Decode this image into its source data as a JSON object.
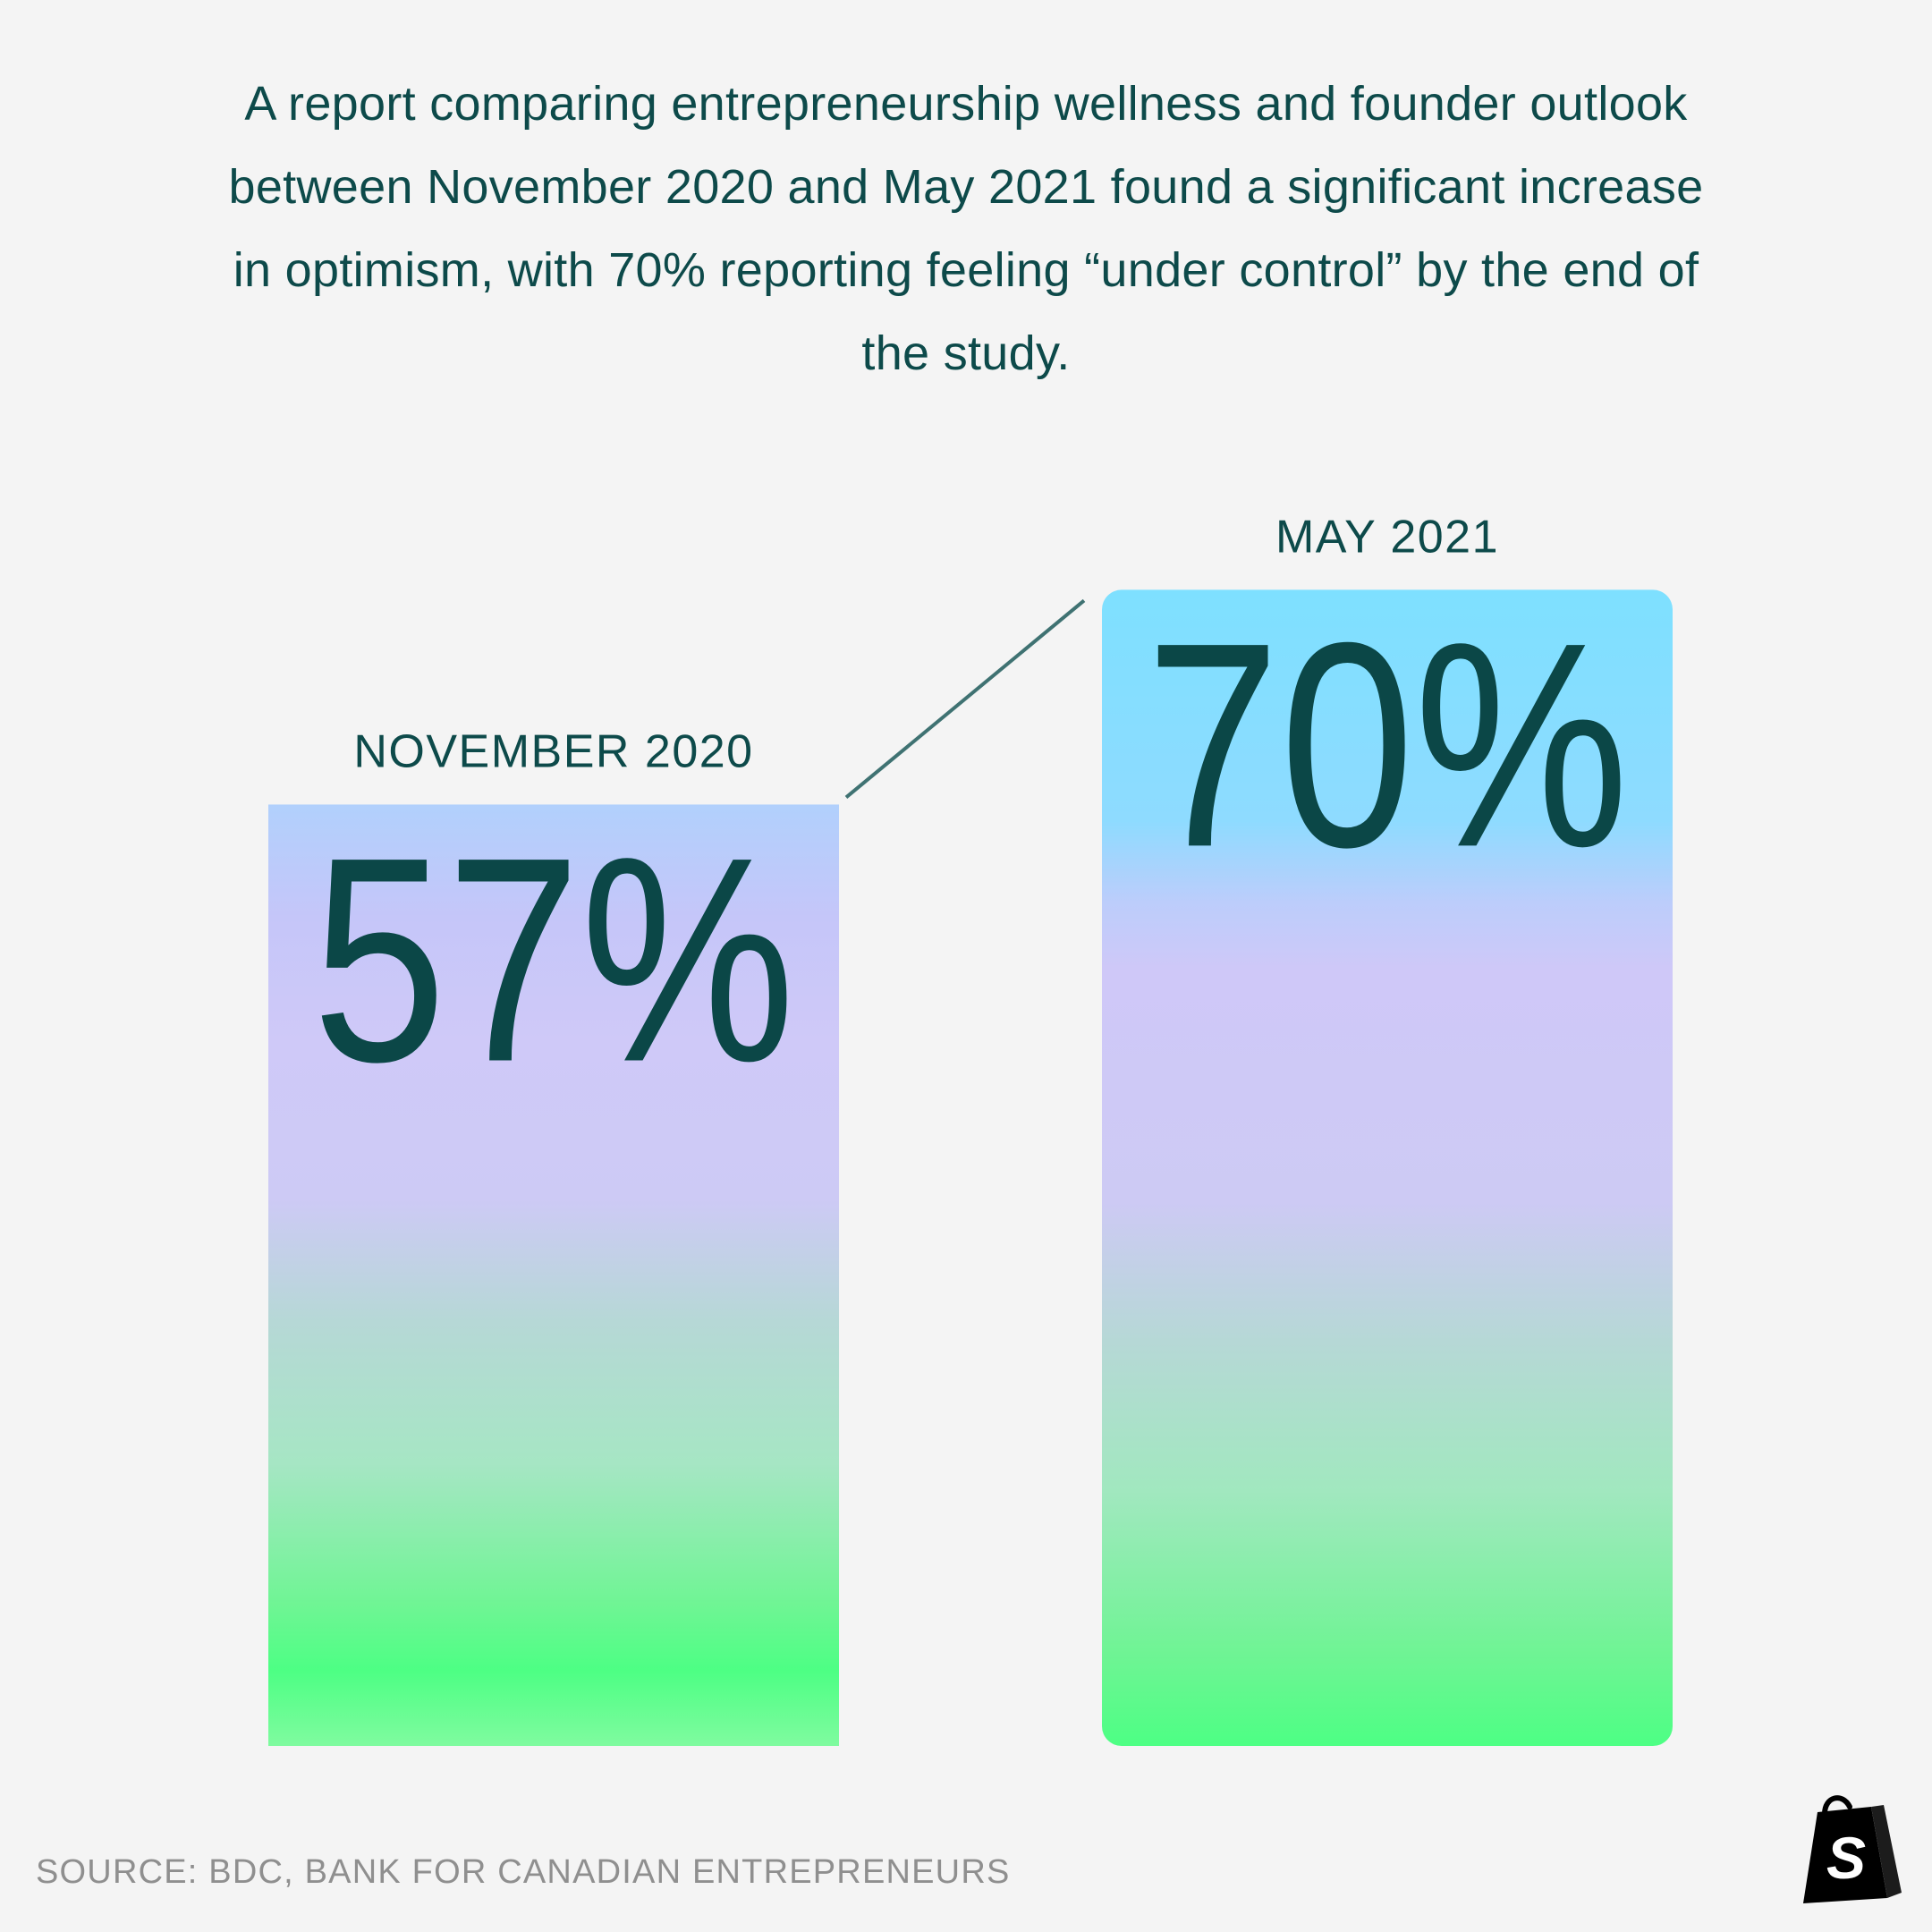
{
  "description": "A report comparing entrepreneurship wellness and founder outlook between November 2020 and May 2021 found a significant increase in optimism, with 70% reporting feeling “under control” by the end of the study.",
  "source": "SOURCE: BDC, BANK FOR CANADIAN ENTREPRENEURS",
  "logo_letter": "S",
  "colors": {
    "text": "#0b4747",
    "background": "#f4f4f4",
    "gradient_top_blue": "#7ee0ff",
    "gradient_lavender": "#cfc8f8",
    "gradient_green": "#4dff87",
    "source_text": "#8f8f8f"
  },
  "chart_data": {
    "type": "bar",
    "title": "",
    "xlabel": "",
    "ylabel": "",
    "ylim": [
      0,
      100
    ],
    "categories": [
      "NOVEMBER 2020",
      "MAY 2021"
    ],
    "values": [
      57,
      70
    ],
    "value_labels": [
      "57%",
      "70%"
    ],
    "unit": "%"
  }
}
